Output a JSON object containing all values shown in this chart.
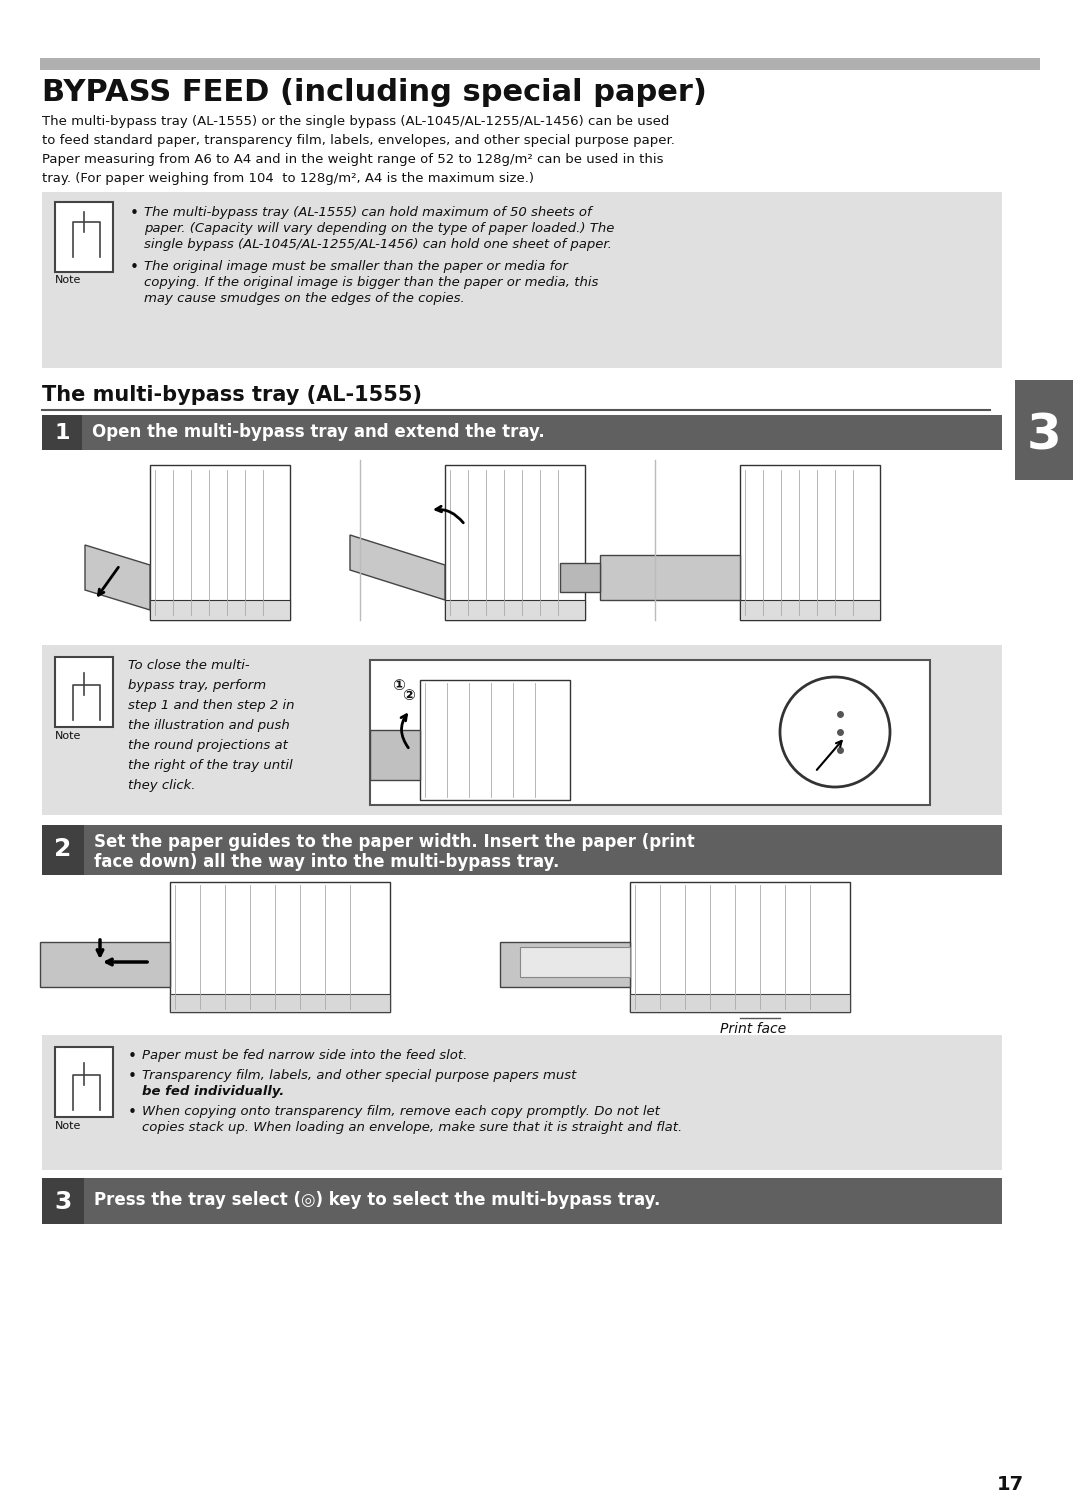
{
  "page_bg": "#ffffff",
  "top_bar_color": "#b0b0b0",
  "section_tab_color": "#606060",
  "note_box_bg": "#e0e0e0",
  "step_bar_bg": "#606060",
  "title": "BYPASS FEED (including special paper)",
  "intro_line1": "The multi-bypass tray (AL-1555) or the single bypass (AL-1045/AL-1255/AL-1456) can be used",
  "intro_line2": "to feed standard paper, transparency film, labels, envelopes, and other special purpose paper.",
  "intro_line3": "Paper measuring from A6 to A4 and in the weight range of 52 to 128g/m² can be used in this",
  "intro_line4": "tray. (For paper weighing from 104  to 128g/m², A4 is the maximum size.)",
  "note1_b1_l1": "The multi-bypass tray (AL-1555) can hold maximum of 50 sheets of",
  "note1_b1_l2": "paper. (Capacity will vary depending on the type of paper loaded.) The",
  "note1_b1_l3": "single bypass (AL-1045/AL-1255/AL-1456) can hold one sheet of paper.",
  "note1_b2_l1": "The original image must be smaller than the paper or media for",
  "note1_b2_l2": "copying. If the original image is bigger than the paper or media, this",
  "note1_b2_l3": "may cause smudges on the edges of the copies.",
  "section_title": "The multi-bypass tray (AL-1555)",
  "step1_num": "1",
  "step1_text": "Open the multi-bypass tray and extend the tray.",
  "note2_l1": "To close the multi-",
  "note2_l2": "bypass tray, perform",
  "note2_l3": "step 1 and then step 2 in",
  "note2_l4": "the illustration and push",
  "note2_l5": "the round projections at",
  "note2_l6": "the right of the tray until",
  "note2_l7": "they click.",
  "step2_num": "2",
  "step2_l1": "Set the paper guides to the paper width. Insert the paper (print",
  "step2_l2": "face down) all the way into the multi-bypass tray.",
  "print_face": "Print face",
  "note3_b1": "Paper must be fed narrow side into the feed slot.",
  "note3_b2_l1": "Transparency film, labels, and other special purpose papers must",
  "note3_b2_l2": "be fed individually.",
  "note3_b3_l1": "When copying onto transparency film, remove each copy promptly. Do not let",
  "note3_b3_l2": "copies stack up. When loading an envelope, make sure that it is straight and flat.",
  "step3_num": "3",
  "step3_text": "Press the tray select (◎) key to select the multi-bypass tray.",
  "page_number": "17",
  "chapter_num": "3",
  "note_label": "Note"
}
